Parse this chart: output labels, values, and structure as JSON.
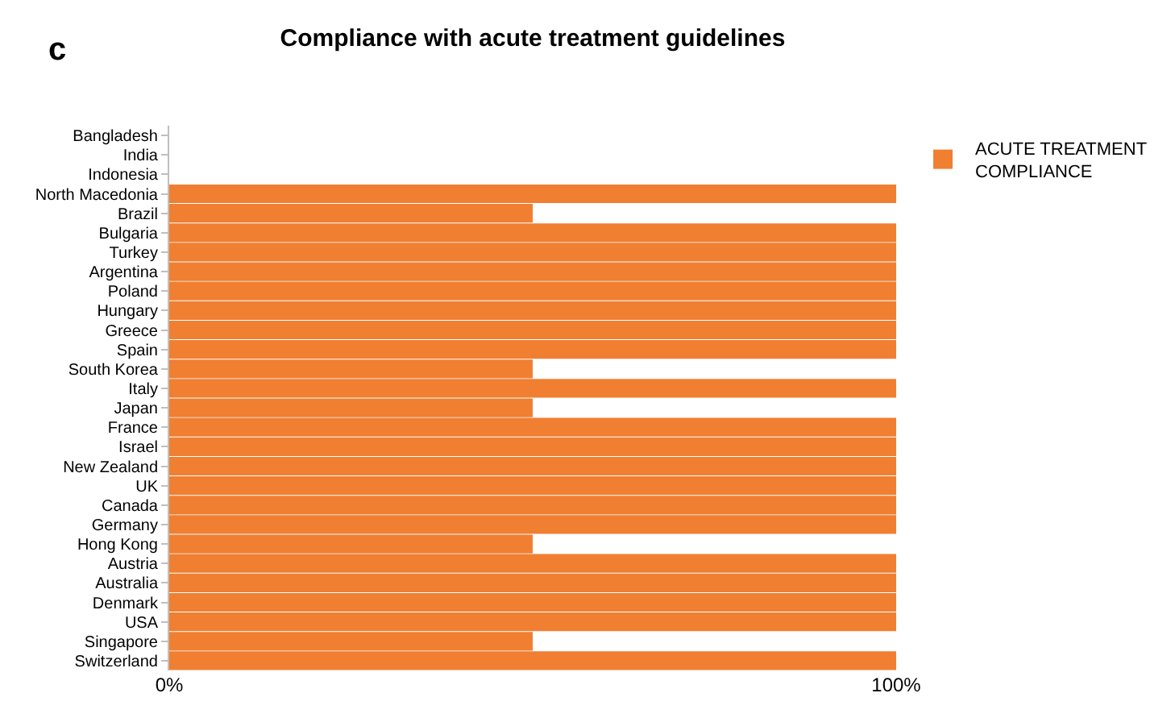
{
  "chart_data": {
    "type": "bar",
    "orientation": "horizontal",
    "title": "Compliance with acute treatment guidelines",
    "annotations": [
      "c"
    ],
    "categories": [
      "Bangladesh",
      "India",
      "Indonesia",
      "North Macedonia",
      "Brazil",
      "Bulgaria",
      "Turkey",
      "Argentina",
      "Poland",
      "Hungary",
      "Greece",
      "Spain",
      "South Korea",
      "Italy",
      "Japan",
      "France",
      "Israel",
      "New Zealand",
      "UK",
      "Canada",
      "Germany",
      "Hong Kong",
      "Austria",
      "Australia",
      "Denmark",
      "USA",
      "Singapore",
      "Switzerland"
    ],
    "series": [
      {
        "name": "ACUTE TREATMENT COMPLIANCE",
        "color": "#f07f32",
        "values": [
          0,
          0,
          0,
          100,
          50,
          100,
          100,
          100,
          100,
          100,
          100,
          100,
          50,
          100,
          50,
          100,
          100,
          100,
          100,
          100,
          100,
          50,
          100,
          100,
          100,
          100,
          50,
          100
        ]
      }
    ],
    "xlim": [
      0,
      100
    ],
    "xticks": [
      {
        "value": 0,
        "label": "0%"
      },
      {
        "value": 100,
        "label": "100%"
      }
    ],
    "legend": "top right"
  }
}
